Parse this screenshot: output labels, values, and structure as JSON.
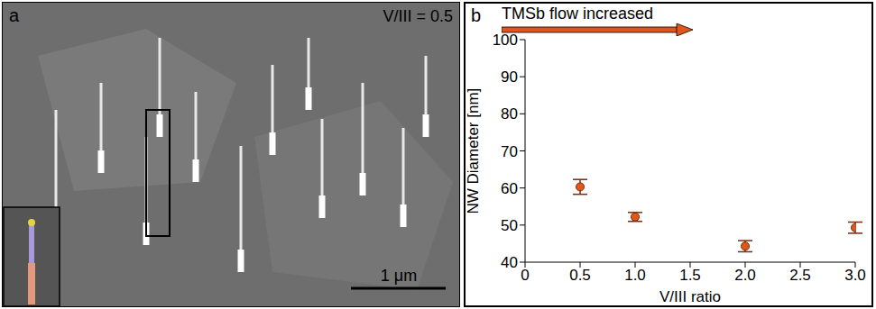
{
  "panel_a": {
    "letter": "a",
    "label": "V/III = 0.5",
    "scale_bar": "1 μm"
  },
  "chart_data": {
    "type": "scatter",
    "panel_label": "b",
    "annotation": "TMSb flow increased",
    "x_label": "V/III ratio",
    "y_label": "NW Diameter [nm]",
    "x": [
      0.5,
      1,
      2,
      3
    ],
    "values": [
      60.3,
      52.2,
      44.3,
      49.3
    ],
    "errors": [
      2.0,
      1.2,
      1.5,
      1.5
    ],
    "color": "#e0561b",
    "marker": "circle",
    "xlim": [
      0,
      3
    ],
    "xticks": [
      0,
      0.5,
      {
        "value": 1,
        "label": "1.0"
      },
      1.5,
      {
        "value": 2,
        "label": "2.0"
      },
      2.5,
      {
        "value": 3,
        "label": "3.0"
      }
    ],
    "ylim": [
      40,
      100
    ],
    "yticks": [
      40,
      50,
      60,
      70,
      80,
      90,
      100
    ],
    "grid": false
  }
}
